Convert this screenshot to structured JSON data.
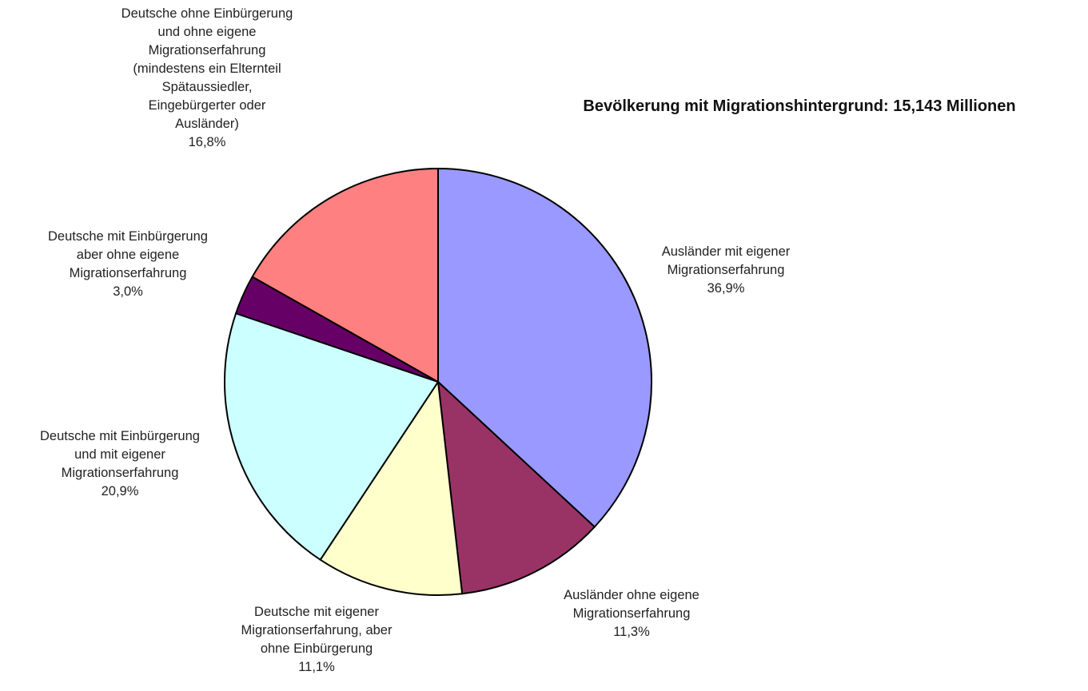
{
  "chart_data": {
    "type": "pie",
    "title": "Bevölkerung mit Migrationshintergrund: 15,143 Millionen",
    "slices": [
      {
        "label_lines": [
          "Ausländer mit eigener",
          "Migrationserfahrung",
          "36,9%"
        ],
        "value": 36.9,
        "color": "#9999FF"
      },
      {
        "label_lines": [
          "Ausländer ohne eigene",
          "Migrationserfahrung",
          "11,3%"
        ],
        "value": 11.3,
        "color": "#993366"
      },
      {
        "label_lines": [
          "Deutsche mit eigener",
          "Migrationserfahrung, aber",
          "ohne Einbürgerung",
          "11,1%"
        ],
        "value": 11.1,
        "color": "#FFFFCC"
      },
      {
        "label_lines": [
          "Deutsche mit Einbürgerung",
          "und mit eigener",
          "Migrationserfahrung",
          "20,9%"
        ],
        "value": 20.9,
        "color": "#CCFFFF"
      },
      {
        "label_lines": [
          "Deutsche mit Einbürgerung",
          "aber ohne eigene",
          "Migrationserfahrung",
          "3,0%"
        ],
        "value": 3.0,
        "color": "#660066"
      },
      {
        "label_lines": [
          "Deutsche ohne Einbürgerung",
          "und ohne eigene",
          "Migrationserfahrung",
          "(mindestens ein Elternteil",
          "Spätaussiedler,",
          "Eingebürgerter oder",
          "Ausländer)",
          "16,8%"
        ],
        "value": 16.8,
        "color": "#FF8080"
      }
    ],
    "legend": "none",
    "data_labels": "outside"
  }
}
